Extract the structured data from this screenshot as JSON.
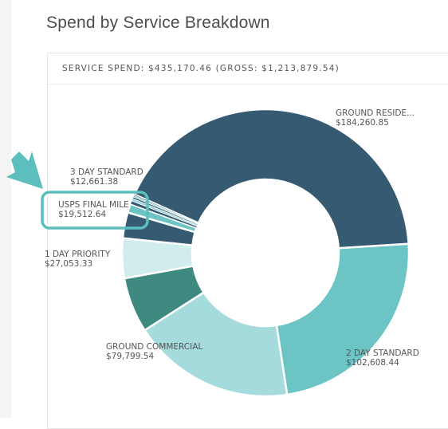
{
  "page": {
    "title": "Spend by Service Breakdown"
  },
  "card": {
    "header": "SERVICE SPEND: $435,170.46 (GROSS: $1,213,879.54)"
  },
  "chart_data": {
    "type": "pie",
    "donut": true,
    "slices": [
      {
        "label": "GROUND RESIDE...",
        "value_text": "$184,260.85",
        "value": 184260.85,
        "color": "#355a72"
      },
      {
        "label": "2 DAY STANDARD",
        "value_text": "$102,608.44",
        "value": 102608.44,
        "color": "#6cc4c4"
      },
      {
        "label": "GROUND COMMERCIAL",
        "value_text": "$79,799.54",
        "value": 79799.54,
        "color": "#a5dbdd"
      },
      {
        "label": "1 DAY PRIORITY",
        "value_text": "$27,053.33",
        "value": 27053.33,
        "color": "#3f8a80"
      },
      {
        "label": "USPS FINAL MILE",
        "value_text": "$19,512.64",
        "value": 19512.64,
        "color": "#d1ecec"
      },
      {
        "label": "3 DAY STANDARD",
        "value_text": "$12,661.38",
        "value": 12661.38,
        "color": "#355a72"
      },
      {
        "label": "",
        "value_text": "",
        "value": 4300,
        "color": "#6cc4c4"
      },
      {
        "label": "",
        "value_text": "",
        "value": 1600,
        "color": "#355a72"
      },
      {
        "label": "",
        "value_text": "",
        "value": 1200,
        "color": "#9fd3d5"
      },
      {
        "label": "",
        "value_text": "",
        "value": 900,
        "color": "#355a72"
      },
      {
        "label": "",
        "value_text": "",
        "value": 700,
        "color": "#6cc4c4"
      },
      {
        "label": "",
        "value_text": "",
        "value": 574.28,
        "color": "#355a72"
      }
    ],
    "highlight": {
      "slice": "USPS FINAL MILE",
      "color": "#5cbfbd"
    }
  }
}
